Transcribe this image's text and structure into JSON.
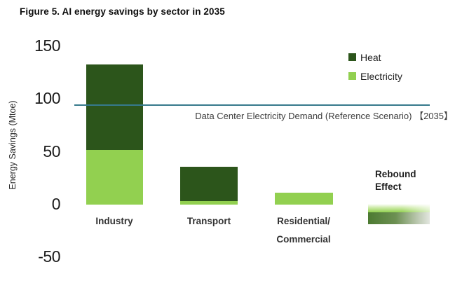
{
  "chart_data": {
    "type": "bar",
    "stacked": true,
    "title": "Figure 5. AI energy savings by sector in 2035",
    "ylabel": "Energy Savings (Mtoe)",
    "ylim": [
      -50,
      150
    ],
    "yticks": [
      150,
      100,
      50,
      0,
      -50
    ],
    "grid": false,
    "legend_position": "top-right",
    "categories": [
      "Industry",
      "Transport",
      "Residential/Commercial"
    ],
    "category_lines": [
      [
        "Industry"
      ],
      [
        "Transport"
      ],
      [
        "Residential/",
        "Commercial"
      ]
    ],
    "series": [
      {
        "name": "Electricity",
        "color": "#92d050",
        "values": [
          52,
          3,
          11
        ]
      },
      {
        "name": "Heat",
        "color": "#2c551b",
        "values": [
          81,
          33,
          0
        ]
      }
    ],
    "reference_line": {
      "label": "Data Center Electricity Demand (Reference Scenario) 【2035】",
      "value": 94,
      "color": "#36798c"
    },
    "rebound_effect": {
      "label_lines": [
        "Rebound",
        "Effect"
      ],
      "top": 0,
      "light_to_dark_boundary": -7,
      "bottom": -18.5,
      "light_color": "#92d050",
      "dark_color": "#4c7a31"
    }
  }
}
